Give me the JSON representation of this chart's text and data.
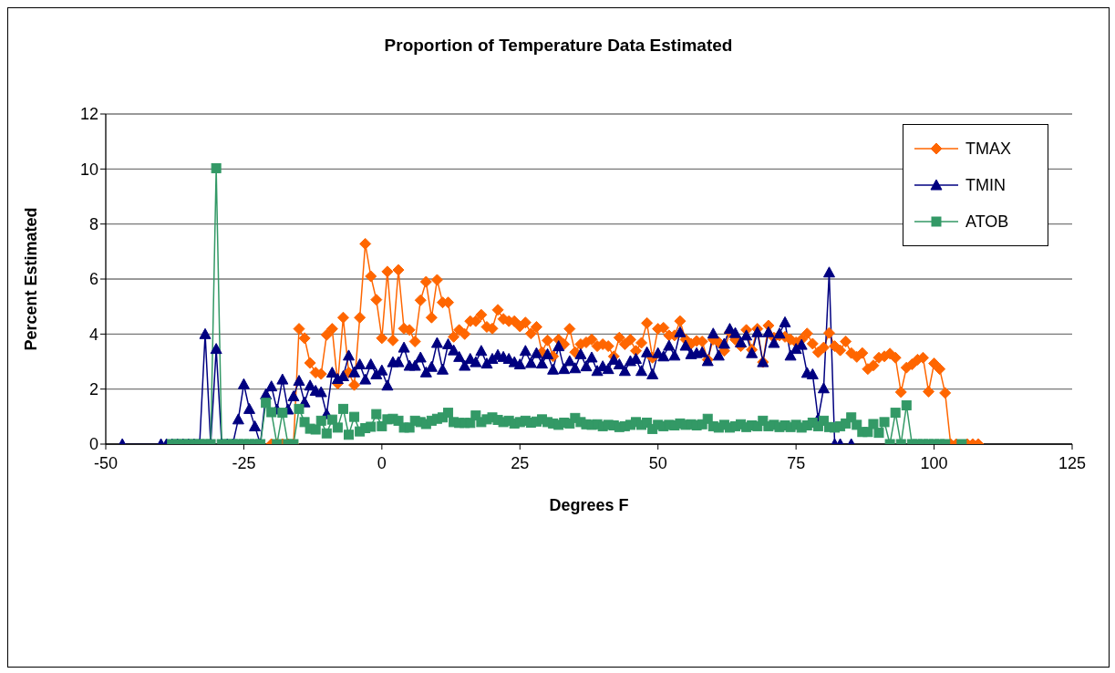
{
  "chart_data": {
    "type": "line",
    "title": "Proportion of Temperature Data Estimated",
    "xlabel": "Degrees F",
    "ylabel": "Percent Estimated",
    "xlim": [
      -50,
      125
    ],
    "xticks": [
      -50,
      -25,
      0,
      25,
      50,
      75,
      100,
      125
    ],
    "ylim": [
      0,
      12
    ],
    "yticks": [
      0,
      2,
      4,
      6,
      8,
      10,
      12
    ],
    "grid": "y",
    "legend": "top right",
    "series": [
      {
        "name": "TMAX",
        "color": "#ff6600",
        "marker": "diamond",
        "x": [
          -20,
          -19,
          -18,
          -17,
          -16,
          -15,
          -14,
          -13,
          -12,
          -11,
          -10,
          -9,
          -8,
          -7,
          -6,
          -5,
          -4,
          -3,
          -2,
          -1,
          0,
          1,
          2,
          3,
          4,
          5,
          6,
          7,
          8,
          9,
          10,
          11,
          12,
          13,
          14,
          15,
          16,
          17,
          18,
          19,
          20,
          21,
          22,
          23,
          24,
          25,
          26,
          27,
          28,
          29,
          30,
          31,
          32,
          33,
          34,
          35,
          36,
          37,
          38,
          39,
          40,
          41,
          42,
          43,
          44,
          45,
          46,
          47,
          48,
          49,
          50,
          51,
          52,
          53,
          54,
          55,
          56,
          57,
          58,
          59,
          60,
          61,
          62,
          63,
          64,
          65,
          66,
          67,
          68,
          69,
          70,
          71,
          72,
          73,
          74,
          75,
          76,
          77,
          78,
          79,
          80,
          81,
          82,
          83,
          84,
          85,
          86,
          87,
          88,
          89,
          90,
          91,
          92,
          93,
          94,
          95,
          96,
          97,
          98,
          99,
          100,
          101,
          102,
          103,
          104,
          106,
          107,
          108
        ],
        "values": [
          0,
          0,
          0,
          0,
          0,
          4.19,
          3.85,
          2.95,
          2.6,
          2.55,
          3.97,
          4.19,
          2.2,
          4.6,
          2.6,
          2.15,
          4.6,
          7.28,
          6.1,
          5.25,
          3.85,
          6.27,
          3.77,
          6.33,
          4.2,
          4.15,
          3.73,
          5.23,
          5.9,
          4.6,
          5.97,
          5.15,
          5.15,
          3.9,
          4.15,
          4.0,
          4.47,
          4.47,
          4.7,
          4.26,
          4.2,
          4.88,
          4.55,
          4.47,
          4.47,
          4.28,
          4.42,
          4.02,
          4.26,
          3.34,
          3.77,
          3.19,
          3.8,
          3.63,
          4.19,
          3.34,
          3.63,
          3.7,
          3.8,
          3.56,
          3.63,
          3.56,
          3.19,
          3.87,
          3.63,
          3.8,
          3.39,
          3.68,
          4.4,
          3.14,
          4.19,
          4.23,
          3.95,
          3.95,
          4.47,
          3.8,
          3.65,
          3.75,
          3.73,
          3.07,
          3.8,
          3.7,
          3.39,
          4.07,
          3.8,
          3.56,
          4.15,
          3.43,
          4.19,
          2.98,
          4.31,
          3.87,
          3.95,
          3.9,
          3.8,
          3.7,
          3.8,
          4.02,
          3.65,
          3.34,
          3.51,
          4.04,
          3.56,
          3.41,
          3.73,
          3.31,
          3.17,
          3.31,
          2.73,
          2.86,
          3.14,
          3.19,
          3.29,
          3.14,
          1.89,
          2.78,
          2.9,
          3.07,
          3.14,
          1.91,
          2.93,
          2.73,
          1.86,
          0,
          0,
          0,
          0,
          0
        ]
      },
      {
        "name": "TMIN",
        "color": "#000080",
        "marker": "triangle",
        "x": [
          -47,
          -40,
          -39,
          -38,
          -37,
          -36,
          -35,
          -34,
          -33,
          -32,
          -31,
          -30,
          -29,
          -28,
          -27,
          -26,
          -25,
          -24,
          -23,
          -22,
          -21,
          -20,
          -19,
          -18,
          -17,
          -16,
          -15,
          -14,
          -13,
          -12,
          -11,
          -10,
          -9,
          -8,
          -7,
          -6,
          -5,
          -4,
          -3,
          -2,
          -1,
          0,
          1,
          2,
          3,
          4,
          5,
          6,
          7,
          8,
          9,
          10,
          11,
          12,
          13,
          14,
          15,
          16,
          17,
          18,
          19,
          20,
          21,
          22,
          23,
          24,
          25,
          26,
          27,
          28,
          29,
          30,
          31,
          32,
          33,
          34,
          35,
          36,
          37,
          38,
          39,
          40,
          41,
          42,
          43,
          44,
          45,
          46,
          47,
          48,
          49,
          50,
          51,
          52,
          53,
          54,
          55,
          56,
          57,
          58,
          59,
          60,
          61,
          62,
          63,
          64,
          65,
          66,
          67,
          68,
          69,
          70,
          71,
          72,
          73,
          74,
          75,
          76,
          77,
          78,
          79,
          80,
          81,
          82,
          83,
          85
        ],
        "values": [
          0,
          0,
          0,
          0,
          0,
          0,
          0,
          0,
          0,
          4.0,
          0,
          3.46,
          0,
          0,
          0,
          0.9,
          2.18,
          1.28,
          0.65,
          0,
          1.81,
          2.1,
          1.26,
          2.35,
          1.26,
          1.74,
          2.3,
          1.52,
          2.13,
          1.94,
          1.89,
          1.09,
          2.6,
          2.37,
          2.47,
          3.22,
          2.61,
          2.9,
          2.35,
          2.9,
          2.54,
          2.68,
          2.13,
          2.98,
          2.98,
          3.51,
          2.85,
          2.85,
          3.15,
          2.61,
          2.81,
          3.68,
          2.71,
          3.63,
          3.41,
          3.17,
          2.85,
          3.1,
          2.98,
          3.39,
          2.93,
          3.1,
          3.24,
          3.17,
          3.1,
          2.98,
          2.9,
          3.39,
          2.95,
          3.31,
          2.93,
          3.27,
          2.71,
          3.56,
          2.73,
          3.02,
          2.76,
          3.27,
          2.83,
          3.15,
          2.66,
          2.83,
          2.73,
          3.07,
          2.9,
          2.66,
          3.02,
          3.1,
          2.66,
          3.34,
          2.54,
          3.31,
          3.19,
          3.58,
          3.22,
          4.07,
          3.58,
          3.27,
          3.31,
          3.34,
          3.02,
          4.02,
          3.22,
          3.65,
          4.19,
          4.04,
          3.7,
          3.95,
          3.31,
          4.07,
          2.98,
          4.07,
          3.68,
          4.02,
          4.43,
          3.22,
          3.46,
          3.61,
          2.59,
          2.54,
          0.92,
          2.03,
          6.24,
          0,
          0,
          0
        ]
      },
      {
        "name": "ATOB",
        "color": "#339966",
        "marker": "square",
        "x": [
          -38,
          -37,
          -36,
          -35,
          -34,
          -33,
          -32,
          -31,
          -30,
          -29,
          -28,
          -27,
          -26,
          -25,
          -24,
          -23,
          -22,
          -21,
          -20,
          -19,
          -18,
          -17,
          -16,
          -15,
          -14,
          -13,
          -12,
          -11,
          -10,
          -9,
          -8,
          -7,
          -6,
          -5,
          -4,
          -3,
          -2,
          -1,
          0,
          1,
          2,
          3,
          4,
          5,
          6,
          7,
          8,
          9,
          10,
          11,
          12,
          13,
          14,
          15,
          16,
          17,
          18,
          19,
          20,
          21,
          22,
          23,
          24,
          25,
          26,
          27,
          28,
          29,
          30,
          31,
          32,
          33,
          34,
          35,
          36,
          37,
          38,
          39,
          40,
          41,
          42,
          43,
          44,
          45,
          46,
          47,
          48,
          49,
          50,
          51,
          52,
          53,
          54,
          55,
          56,
          57,
          58,
          59,
          60,
          61,
          62,
          63,
          64,
          65,
          66,
          67,
          68,
          69,
          70,
          71,
          72,
          73,
          74,
          75,
          76,
          77,
          78,
          79,
          80,
          81,
          82,
          83,
          84,
          85,
          86,
          87,
          88,
          89,
          90,
          91,
          92,
          93,
          94,
          95,
          96,
          97,
          98,
          99,
          100,
          101,
          102,
          105
        ],
        "values": [
          0,
          0,
          0,
          0,
          0,
          0,
          0,
          0,
          10.03,
          0,
          0,
          0,
          0,
          0,
          0,
          0,
          0,
          1.5,
          1.16,
          0,
          1.14,
          0,
          0,
          1.28,
          0.8,
          0.56,
          0.53,
          0.85,
          0.39,
          0.89,
          0.6,
          1.28,
          0.34,
          0.99,
          0.46,
          0.58,
          0.63,
          1.09,
          0.65,
          0.9,
          0.92,
          0.85,
          0.6,
          0.6,
          0.85,
          0.8,
          0.73,
          0.85,
          0.92,
          0.97,
          1.14,
          0.8,
          0.77,
          0.77,
          0.77,
          1.04,
          0.8,
          0.9,
          0.97,
          0.88,
          0.8,
          0.85,
          0.75,
          0.8,
          0.85,
          0.78,
          0.82,
          0.9,
          0.8,
          0.75,
          0.7,
          0.78,
          0.75,
          0.95,
          0.8,
          0.72,
          0.7,
          0.72,
          0.65,
          0.7,
          0.68,
          0.62,
          0.65,
          0.7,
          0.8,
          0.7,
          0.78,
          0.55,
          0.7,
          0.65,
          0.7,
          0.68,
          0.75,
          0.7,
          0.72,
          0.68,
          0.72,
          0.92,
          0.65,
          0.6,
          0.7,
          0.6,
          0.65,
          0.72,
          0.62,
          0.68,
          0.65,
          0.85,
          0.65,
          0.7,
          0.62,
          0.68,
          0.62,
          0.7,
          0.6,
          0.68,
          0.78,
          0.65,
          0.85,
          0.62,
          0.6,
          0.65,
          0.75,
          0.97,
          0.7,
          0.44,
          0.44,
          0.73,
          0.41,
          0.8,
          0,
          1.14,
          0,
          1.41,
          0,
          0,
          0,
          0,
          0,
          0,
          0,
          0
        ]
      }
    ]
  }
}
